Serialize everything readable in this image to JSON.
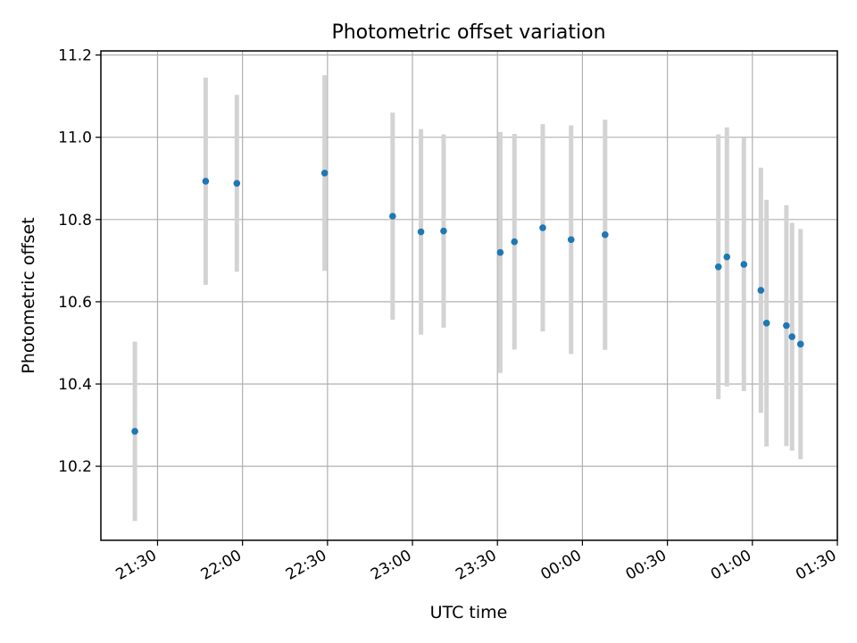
{
  "chart_data": {
    "type": "scatter",
    "title": "Photometric offset variation",
    "xlabel": "UTC time",
    "ylabel": "Photometric offset",
    "xlim": [
      "21:10",
      "01:30"
    ],
    "ylim": [
      10.02,
      11.21
    ],
    "x_ticks": [
      "21:30",
      "22:00",
      "22:30",
      "23:00",
      "23:30",
      "00:00",
      "00:30",
      "01:00",
      "01:30"
    ],
    "y_ticks": [
      "10.2",
      "10.4",
      "10.6",
      "10.8",
      "11.0",
      "11.2"
    ],
    "grid": true,
    "colors": {
      "point": "#1f77b4",
      "errorbar": "#d3d3d3",
      "grid": "#b0b0b0"
    },
    "points": [
      {
        "x": "21:22",
        "y": 10.285,
        "err": 0.218
      },
      {
        "x": "21:47",
        "y": 10.893,
        "err": 0.252
      },
      {
        "x": "21:58",
        "y": 10.888,
        "err": 0.215
      },
      {
        "x": "22:29",
        "y": 10.913,
        "err": 0.238
      },
      {
        "x": "22:53",
        "y": 10.808,
        "err": 0.252
      },
      {
        "x": "23:03",
        "y": 10.77,
        "err": 0.25
      },
      {
        "x": "23:11",
        "y": 10.772,
        "err": 0.235
      },
      {
        "x": "23:31",
        "y": 10.72,
        "err": 0.293
      },
      {
        "x": "23:36",
        "y": 10.746,
        "err": 0.262
      },
      {
        "x": "23:46",
        "y": 10.78,
        "err": 0.252
      },
      {
        "x": "23:56",
        "y": 10.751,
        "err": 0.278
      },
      {
        "x": "00:08",
        "y": 10.763,
        "err": 0.28
      },
      {
        "x": "00:48",
        "y": 10.685,
        "err": 0.322
      },
      {
        "x": "00:51",
        "y": 10.709,
        "err": 0.315
      },
      {
        "x": "00:57",
        "y": 10.691,
        "err": 0.308
      },
      {
        "x": "01:03",
        "y": 10.628,
        "err": 0.298
      },
      {
        "x": "01:05",
        "y": 10.548,
        "err": 0.3
      },
      {
        "x": "01:12",
        "y": 10.542,
        "err": 0.293
      },
      {
        "x": "01:14",
        "y": 10.515,
        "err": 0.277
      },
      {
        "x": "01:17",
        "y": 10.497,
        "err": 0.28
      }
    ]
  }
}
